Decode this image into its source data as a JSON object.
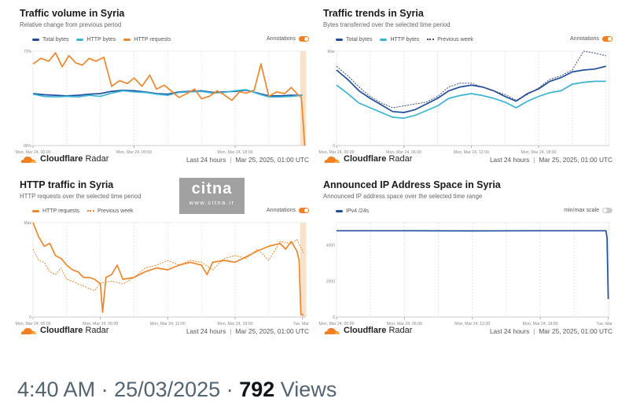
{
  "footer": {
    "brand_bold": "Cloudflare",
    "brand_rest": "Radar",
    "range": "Last 24 hours",
    "date": "Mar 25, 2025, 01:00 UTC"
  },
  "watermark": {
    "logo": "citna",
    "url": "www.citna.ir"
  },
  "tweet": {
    "time": "4:40 AM",
    "date": "25/03/2025",
    "views": "792",
    "views_label": "Views"
  },
  "colors": {
    "total": "#1f4e9c",
    "http_bytes": "#3ab3d6",
    "http_requests": "#f0862a",
    "prev_week": "#3a4a7a",
    "accent": "#f38020"
  },
  "chart_data": [
    {
      "type": "line",
      "title": "Traffic volume in Syria",
      "subtitle": "Relative change from previous period",
      "toggle_label": "Annotations",
      "toggle_on": true,
      "annotation_band": [
        23.8,
        24.3
      ],
      "ylim": [
        -96,
        73
      ],
      "yticks": [
        {
          "v": 73,
          "label": "73%"
        },
        {
          "v": -96,
          "label": "-96%"
        }
      ],
      "xlim": [
        0,
        24.3
      ],
      "xticks": [
        {
          "v": 0,
          "label": "Mon, Mar 24, 00:00"
        },
        {
          "v": 9,
          "label": "Mon, Mar 24, 09:00"
        },
        {
          "v": 18,
          "label": "Mon, Mar 24, 18:00"
        }
      ],
      "series": [
        {
          "name": "Total bytes",
          "color": "#1f4e9c",
          "x": [
            0,
            1,
            2,
            3,
            4,
            5,
            6,
            7,
            8,
            9,
            10,
            11,
            12,
            13,
            14,
            15,
            16,
            17,
            18,
            19,
            20,
            21,
            22,
            23,
            24
          ],
          "y": [
            -3,
            -5,
            -6,
            -7,
            -6,
            -4,
            -3,
            1,
            3,
            2,
            0,
            -3,
            -4,
            0,
            1,
            2,
            -1,
            0,
            1,
            3,
            -2,
            -7,
            -7,
            -6,
            -6
          ]
        },
        {
          "name": "HTTP bytes",
          "color": "#3ab3d6",
          "x": [
            0,
            1,
            2,
            3,
            4,
            5,
            6,
            7,
            8,
            9,
            10,
            11,
            12,
            13,
            14,
            15,
            16,
            17,
            18,
            19,
            20,
            21,
            22,
            23,
            24
          ],
          "y": [
            -4,
            -8,
            -9,
            -8,
            -9,
            -6,
            -8,
            -2,
            2,
            0,
            -1,
            -4,
            -6,
            -1,
            0,
            1,
            -2,
            -1,
            2,
            4,
            -3,
            -9,
            -9,
            -8,
            -6
          ]
        },
        {
          "name": "HTTP requests",
          "color": "#f0862a",
          "x": [
            0,
            0.7,
            1.4,
            2,
            2.6,
            3.2,
            3.8,
            4.4,
            5,
            5.6,
            6.3,
            7,
            7.7,
            8.4,
            9,
            9.7,
            10.4,
            11,
            11.7,
            12.4,
            13,
            13.7,
            14.4,
            15,
            15.7,
            16.4,
            17,
            17.7,
            18.4,
            19,
            19.7,
            20.3,
            21,
            21.7,
            22.4,
            23,
            23.6,
            23.9,
            24.2
          ],
          "y": [
            50,
            60,
            55,
            70,
            45,
            65,
            52,
            48,
            60,
            55,
            62,
            10,
            20,
            15,
            25,
            10,
            30,
            5,
            12,
            0,
            -10,
            -3,
            5,
            -12,
            -8,
            2,
            -5,
            -15,
            0,
            -2,
            3,
            50,
            -8,
            0,
            -3,
            8,
            -5,
            -10,
            -96
          ]
        }
      ]
    },
    {
      "type": "line",
      "title": "Traffic trends in Syria",
      "subtitle": "Bytes transferred over the selected time period",
      "toggle_label": "Annotations",
      "toggle_on": true,
      "ylim": [
        0,
        100
      ],
      "yticks": [
        {
          "v": 100,
          "label": "Max"
        },
        {
          "v": 0,
          "label": "0"
        }
      ],
      "xlim": [
        0,
        24.3
      ],
      "xticks": [
        {
          "v": 0,
          "label": "Mon, Mar 24, 00:00"
        },
        {
          "v": 6,
          "label": "Mon, Mar 24, 06:00"
        },
        {
          "v": 12,
          "label": "Mon, Mar 24, 12:00"
        },
        {
          "v": 18,
          "label": "Mon, Mar 24, 18:00"
        }
      ],
      "series": [
        {
          "name": "Total bytes",
          "color": "#1f4e9c",
          "x": [
            0,
            1,
            2,
            3,
            4,
            5,
            6,
            7,
            8,
            9,
            10,
            11,
            12,
            13,
            14,
            15,
            16,
            17,
            18,
            19,
            20,
            21,
            22,
            23,
            24
          ],
          "y": [
            80,
            70,
            58,
            50,
            43,
            36,
            35,
            38,
            44,
            50,
            58,
            62,
            64,
            62,
            58,
            52,
            47,
            55,
            60,
            68,
            72,
            78,
            80,
            81,
            84
          ]
        },
        {
          "name": "HTTP bytes",
          "color": "#3ab3d6",
          "x": [
            0,
            1,
            2,
            3,
            4,
            5,
            6,
            7,
            8,
            9,
            10,
            11,
            12,
            13,
            14,
            15,
            16,
            17,
            18,
            19,
            20,
            21,
            22,
            23,
            24
          ],
          "y": [
            64,
            55,
            45,
            40,
            35,
            30,
            29,
            32,
            37,
            42,
            50,
            53,
            55,
            53,
            50,
            46,
            40,
            47,
            52,
            56,
            58,
            65,
            67,
            68,
            68
          ]
        },
        {
          "name": "Previous week",
          "color": "#3a4a7a",
          "dashed": true,
          "x": [
            0,
            1,
            2,
            3,
            4,
            5,
            6,
            7,
            8,
            9,
            10,
            11,
            12,
            13,
            14,
            15,
            16,
            17,
            18,
            19,
            20,
            21,
            22,
            23,
            24
          ],
          "y": [
            84,
            74,
            62,
            52,
            45,
            40,
            42,
            44,
            46,
            52,
            62,
            66,
            66,
            62,
            58,
            54,
            48,
            54,
            61,
            70,
            74,
            80,
            100,
            98,
            95
          ]
        }
      ]
    },
    {
      "type": "line",
      "title": "HTTP traffic in Syria",
      "subtitle": "HTTP requests over the selected time period",
      "toggle_label": "Annotations",
      "toggle_on": true,
      "annotation_band": [
        23.8,
        24.3
      ],
      "ylim": [
        0,
        100
      ],
      "yticks": [
        {
          "v": 100,
          "label": "Max"
        },
        {
          "v": 0,
          "label": "0"
        }
      ],
      "xlim": [
        0,
        24.3
      ],
      "xticks": [
        {
          "v": 0,
          "label": "Mon, Mar 24, 00:00"
        },
        {
          "v": 6,
          "label": "Mon, Mar 24, 06:00"
        },
        {
          "v": 12,
          "label": "Mon, Mar 24, 12:00"
        },
        {
          "v": 18,
          "label": "Mon, Mar 24, 18:00"
        },
        {
          "v": 24,
          "label": "Tue, Mar"
        }
      ],
      "series": [
        {
          "name": "HTTP requests",
          "color": "#f0862a",
          "x": [
            0,
            0.5,
            1,
            1.5,
            2,
            2.5,
            3,
            3.5,
            4,
            4.5,
            5,
            5.5,
            6,
            6.2,
            6.5,
            7,
            7.5,
            8,
            9,
            10,
            11,
            12,
            13,
            14,
            15,
            15.5,
            16,
            17,
            18,
            19,
            20,
            21,
            22,
            22.5,
            23,
            23.5,
            23.7,
            23.85,
            24.1
          ],
          "y": [
            100,
            85,
            75,
            78,
            65,
            62,
            55,
            50,
            48,
            42,
            42,
            40,
            35,
            5,
            42,
            45,
            55,
            40,
            42,
            48,
            52,
            50,
            55,
            58,
            55,
            45,
            58,
            60,
            58,
            64,
            70,
            75,
            78,
            72,
            80,
            70,
            60,
            3,
            2
          ]
        },
        {
          "name": "Previous week",
          "color": "#f0862a",
          "dashed": true,
          "x": [
            0,
            0.5,
            1,
            1.5,
            2,
            2.5,
            3,
            3.5,
            4,
            4.5,
            5,
            5.5,
            6,
            7,
            8,
            9,
            10,
            11,
            12,
            13,
            14,
            15,
            16,
            17,
            18,
            19,
            20,
            21,
            22,
            23,
            23.5,
            24.1
          ],
          "y": [
            72,
            60,
            58,
            48,
            45,
            52,
            40,
            38,
            35,
            33,
            30,
            28,
            36,
            38,
            35,
            42,
            52,
            55,
            60,
            55,
            60,
            58,
            50,
            62,
            65,
            62,
            72,
            60,
            80,
            78,
            82,
            68
          ]
        }
      ]
    },
    {
      "type": "line",
      "title": "Announced IP Address Space in Syria",
      "subtitle": "Announced IP address space over the selected time range",
      "toggle_label": "min/max scale",
      "toggle_on": false,
      "ylim": [
        0,
        5250
      ],
      "yticks": [
        {
          "v": 4000,
          "label": "4000"
        },
        {
          "v": 2000,
          "label": "2000"
        },
        {
          "v": 0,
          "label": "0"
        }
      ],
      "xlim": [
        0,
        24.1
      ],
      "xticks": [
        {
          "v": 0,
          "label": "Mon, Mar 24, 00:00"
        },
        {
          "v": 6,
          "label": "Mon, Mar 24, 06:00"
        },
        {
          "v": 12,
          "label": "Mon, Mar 24, 12:00"
        },
        {
          "v": 18,
          "label": "Mon, Mar 24, 18:00"
        },
        {
          "v": 24,
          "label": "Tue, Mar"
        }
      ],
      "series": [
        {
          "name": "IPv4 /24s",
          "color": "#1f4e9c",
          "x": [
            0,
            6,
            12,
            18,
            23.8,
            23.9,
            24
          ],
          "y": [
            4800,
            4800,
            4790,
            4800,
            4800,
            4400,
            1000
          ]
        }
      ]
    }
  ]
}
